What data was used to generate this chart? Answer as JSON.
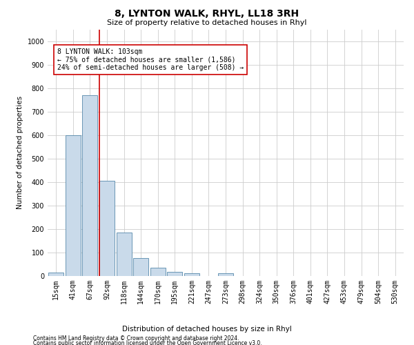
{
  "title": "8, LYNTON WALK, RHYL, LL18 3RH",
  "subtitle": "Size of property relative to detached houses in Rhyl",
  "xlabel": "Distribution of detached houses by size in Rhyl",
  "ylabel": "Number of detached properties",
  "categories": [
    "15sqm",
    "41sqm",
    "67sqm",
    "92sqm",
    "118sqm",
    "144sqm",
    "170sqm",
    "195sqm",
    "221sqm",
    "247sqm",
    "273sqm",
    "298sqm",
    "324sqm",
    "350sqm",
    "376sqm",
    "401sqm",
    "427sqm",
    "453sqm",
    "479sqm",
    "504sqm",
    "530sqm"
  ],
  "values": [
    15,
    600,
    770,
    405,
    185,
    75,
    35,
    18,
    12,
    0,
    12,
    0,
    0,
    0,
    0,
    0,
    0,
    0,
    0,
    0,
    0
  ],
  "bar_color": "#c9daea",
  "bar_edge_color": "#5588aa",
  "vline_color": "#cc0000",
  "annotation_text": "8 LYNTON WALK: 103sqm\n← 75% of detached houses are smaller (1,586)\n24% of semi-detached houses are larger (508) →",
  "annotation_box_color": "#ffffff",
  "annotation_box_edge_color": "#cc0000",
  "ylim": [
    0,
    1050
  ],
  "yticks": [
    0,
    100,
    200,
    300,
    400,
    500,
    600,
    700,
    800,
    900,
    1000
  ],
  "footer1": "Contains HM Land Registry data © Crown copyright and database right 2024.",
  "footer2": "Contains public sector information licensed under the Open Government Licence v3.0.",
  "background_color": "#ffffff",
  "grid_color": "#cccccc",
  "title_fontsize": 10,
  "subtitle_fontsize": 8,
  "ylabel_fontsize": 7.5,
  "tick_fontsize": 7,
  "annotation_fontsize": 7,
  "footer_fontsize": 5.5
}
